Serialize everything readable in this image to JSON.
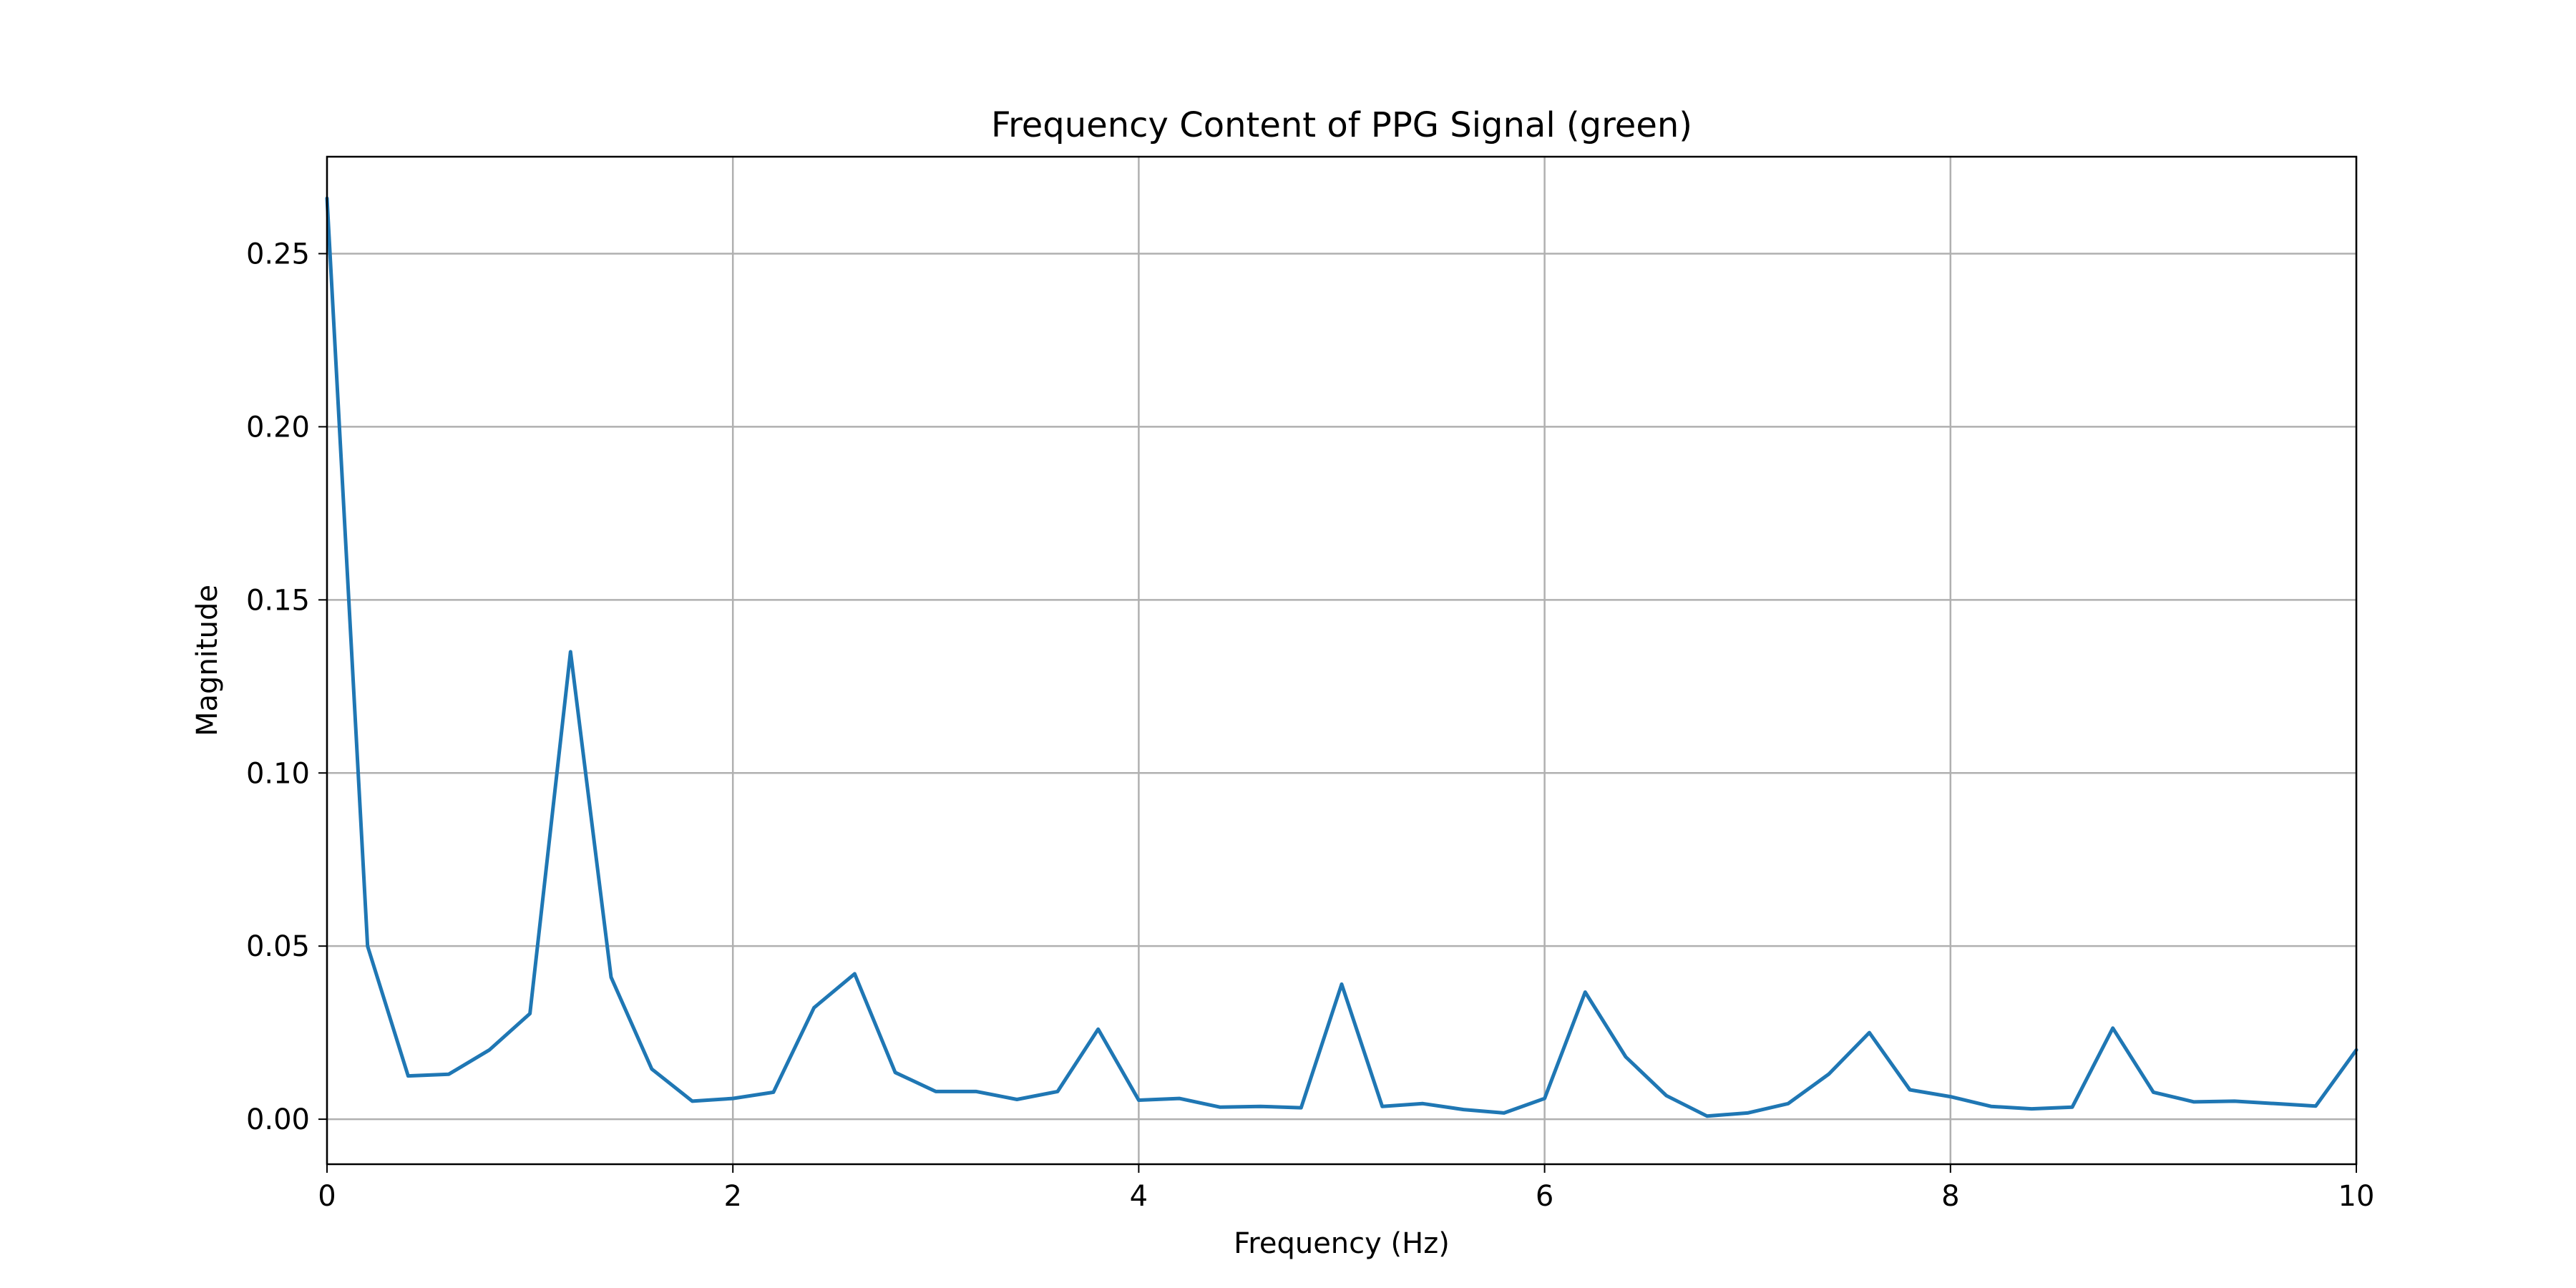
{
  "chart_data": {
    "type": "line",
    "title": "Frequency Content of PPG Signal (green)",
    "xlabel": "Frequency (Hz)",
    "ylabel": "Magnitude",
    "xlim": [
      0,
      10
    ],
    "ylim": [
      -0.013,
      0.278
    ],
    "xticks": [
      0,
      2,
      4,
      6,
      8,
      10
    ],
    "xtick_labels": [
      "0",
      "2",
      "4",
      "6",
      "8",
      "10"
    ],
    "yticks": [
      0.0,
      0.05,
      0.1,
      0.15,
      0.2,
      0.25
    ],
    "ytick_labels": [
      "0.00",
      "0.05",
      "0.10",
      "0.15",
      "0.20",
      "0.25"
    ],
    "grid": true,
    "series": [
      {
        "color": "#1f77b4",
        "x": [
          0.0,
          0.2,
          0.4,
          0.6,
          0.8,
          1.0,
          1.2,
          1.4,
          1.6,
          1.8,
          2.0,
          2.2,
          2.4,
          2.6,
          2.8,
          3.0,
          3.2,
          3.4,
          3.6,
          3.8,
          4.0,
          4.2,
          4.4,
          4.6,
          4.8,
          5.0,
          5.2,
          5.4,
          5.6,
          5.8,
          6.0,
          6.2,
          6.4,
          6.6,
          6.8,
          7.0,
          7.2,
          7.4,
          7.6,
          7.8,
          8.0,
          8.2,
          8.4,
          8.6,
          8.8,
          9.0,
          9.2,
          9.4,
          9.6,
          9.8,
          10.0
        ],
        "y": [
          0.266,
          0.05,
          0.0125,
          0.013,
          0.02,
          0.0305,
          0.135,
          0.041,
          0.0145,
          0.0052,
          0.006,
          0.0078,
          0.0322,
          0.042,
          0.0135,
          0.008,
          0.008,
          0.0057,
          0.008,
          0.026,
          0.0055,
          0.006,
          0.0035,
          0.0037,
          0.0033,
          0.039,
          0.0037,
          0.0045,
          0.0028,
          0.0018,
          0.006,
          0.0367,
          0.018,
          0.0068,
          0.0009,
          0.0018,
          0.0045,
          0.013,
          0.025,
          0.0085,
          0.0065,
          0.0037,
          0.003,
          0.0035,
          0.0263,
          0.0078,
          0.005,
          0.0052,
          0.0045,
          0.0038,
          0.02
        ]
      }
    ]
  }
}
